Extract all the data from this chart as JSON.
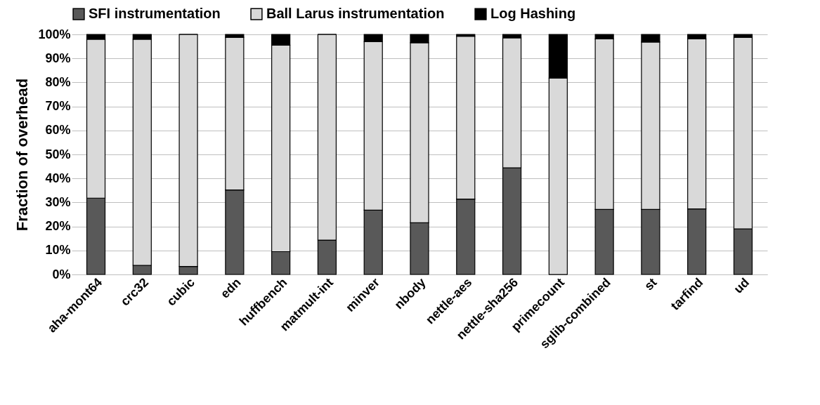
{
  "chart_data": {
    "type": "bar",
    "stacked": true,
    "ylabel": "Fraction of overhead",
    "categories": [
      "aha-mont64",
      "crc32",
      "cubic",
      "edn",
      "huffbench",
      "matmult-int",
      "minver",
      "nbody",
      "nettle-aes",
      "nettle-sha256",
      "primecount",
      "sglib-combined",
      "st",
      "tarfind",
      "ud"
    ],
    "series": [
      {
        "name": "SFI instrumentation",
        "color": "#595959",
        "values": [
          31.8,
          3.8,
          3.3,
          35.2,
          9.5,
          14.3,
          26.8,
          21.5,
          31.4,
          44.4,
          0,
          27.1,
          27.1,
          27.3,
          19
        ]
      },
      {
        "name": "Ball Larus instrumentation",
        "color": "#d9d9d9",
        "values": [
          66.2,
          94.2,
          96.7,
          63.6,
          86,
          85.7,
          70.2,
          75,
          67.8,
          54.2,
          81.8,
          71,
          69.7,
          70.8,
          79.8
        ]
      },
      {
        "name": "Log Hashing",
        "color": "#000000",
        "values": [
          2,
          2,
          0,
          1.2,
          4.5,
          0,
          3,
          3.5,
          0.8,
          1.4,
          18.2,
          1.9,
          3.2,
          1.9,
          1.2
        ]
      }
    ],
    "ylim": [
      0,
      100
    ],
    "yticks": [
      {
        "value": 0,
        "label": "0%"
      },
      {
        "value": 10,
        "label": "10%"
      },
      {
        "value": 20,
        "label": "20%"
      },
      {
        "value": 30,
        "label": "30%"
      },
      {
        "value": 40,
        "label": "40%"
      },
      {
        "value": 50,
        "label": "50%"
      },
      {
        "value": 60,
        "label": "60%"
      },
      {
        "value": 70,
        "label": "70%"
      },
      {
        "value": 80,
        "label": "80%"
      },
      {
        "value": 90,
        "label": "90%"
      },
      {
        "value": 100,
        "label": "100%"
      }
    ],
    "grid": "y",
    "legend": "top"
  }
}
